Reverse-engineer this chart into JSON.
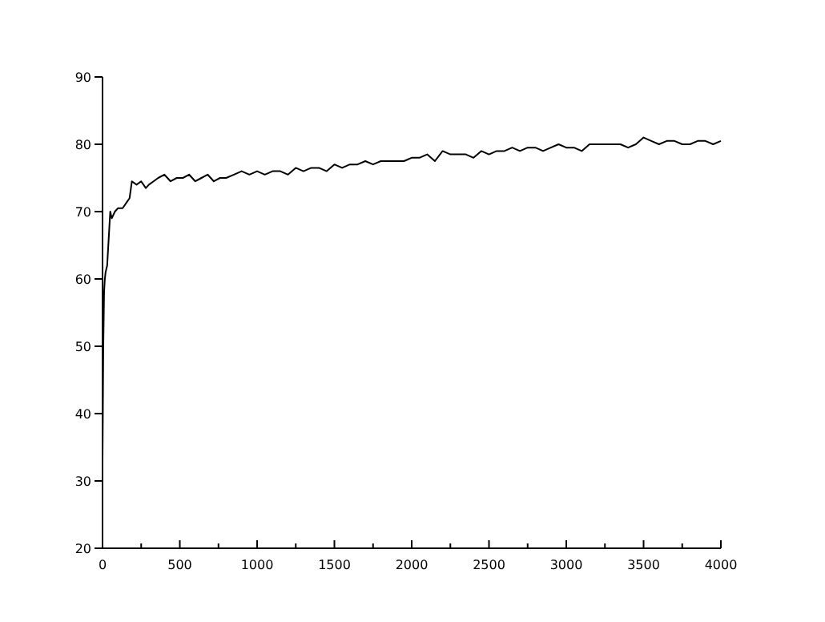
{
  "chart_data": {
    "type": "line",
    "xlim": [
      0,
      4000
    ],
    "ylim": [
      20,
      90
    ],
    "xticks": [
      0,
      {
        "value": 250,
        "label": null
      },
      500,
      {
        "value": 750,
        "label": null
      },
      1000,
      {
        "value": 1250,
        "label": null
      },
      1500,
      {
        "value": 1750,
        "label": null
      },
      2000,
      {
        "value": 2250,
        "label": null
      },
      2500,
      {
        "value": 2750,
        "label": null
      },
      3000,
      {
        "value": 3250,
        "label": null
      },
      3500,
      {
        "value": 3750,
        "label": null
      },
      4000
    ],
    "yticks": [
      20,
      30,
      40,
      50,
      60,
      70,
      80,
      90
    ],
    "grid": false,
    "marker": "none",
    "line_style": "solid",
    "series": [
      {
        "color": "#000000",
        "x": [
          0,
          5,
          10,
          15,
          20,
          30,
          40,
          50,
          60,
          80,
          100,
          130,
          160,
          175,
          190,
          220,
          250,
          280,
          300,
          330,
          360,
          400,
          440,
          480,
          520,
          560,
          600,
          640,
          680,
          720,
          760,
          800,
          850,
          900,
          950,
          1000,
          1050,
          1100,
          1150,
          1200,
          1250,
          1300,
          1350,
          1400,
          1450,
          1500,
          1550,
          1600,
          1650,
          1700,
          1750,
          1800,
          1850,
          1900,
          1950,
          2000,
          2050,
          2100,
          2150,
          2200,
          2250,
          2300,
          2350,
          2400,
          2450,
          2500,
          2550,
          2600,
          2650,
          2700,
          2750,
          2800,
          2850,
          2900,
          2950,
          3000,
          3050,
          3100,
          3150,
          3200,
          3250,
          3300,
          3350,
          3400,
          3450,
          3500,
          3550,
          3600,
          3650,
          3700,
          3750,
          3800,
          3850,
          3900,
          3950,
          4000
        ],
        "values": [
          33,
          50,
          58,
          60,
          61,
          62,
          66,
          70,
          69,
          70,
          70.5,
          70.5,
          71.5,
          72,
          74.5,
          74,
          74.5,
          73.5,
          74,
          74.5,
          75,
          75.5,
          74.5,
          75,
          75,
          75.5,
          74.5,
          75,
          75.5,
          74.5,
          75,
          75,
          75.5,
          76,
          75.5,
          76,
          75.5,
          76,
          76,
          75.5,
          76.5,
          76,
          76.5,
          76.5,
          76,
          77,
          76.5,
          77,
          77,
          77.5,
          77,
          77.5,
          77.5,
          77.5,
          77.5,
          78,
          78,
          78.5,
          77.5,
          79,
          78.5,
          78.5,
          78.5,
          78,
          79,
          78.5,
          79,
          79,
          79.5,
          79,
          79.5,
          79.5,
          79,
          79.5,
          80,
          79.5,
          79.5,
          79,
          80,
          80,
          80,
          80,
          80,
          79.5,
          80,
          81,
          80.5,
          80,
          80.5,
          80.5,
          80,
          80,
          80.5,
          80.5,
          80,
          80.5
        ]
      }
    ]
  }
}
